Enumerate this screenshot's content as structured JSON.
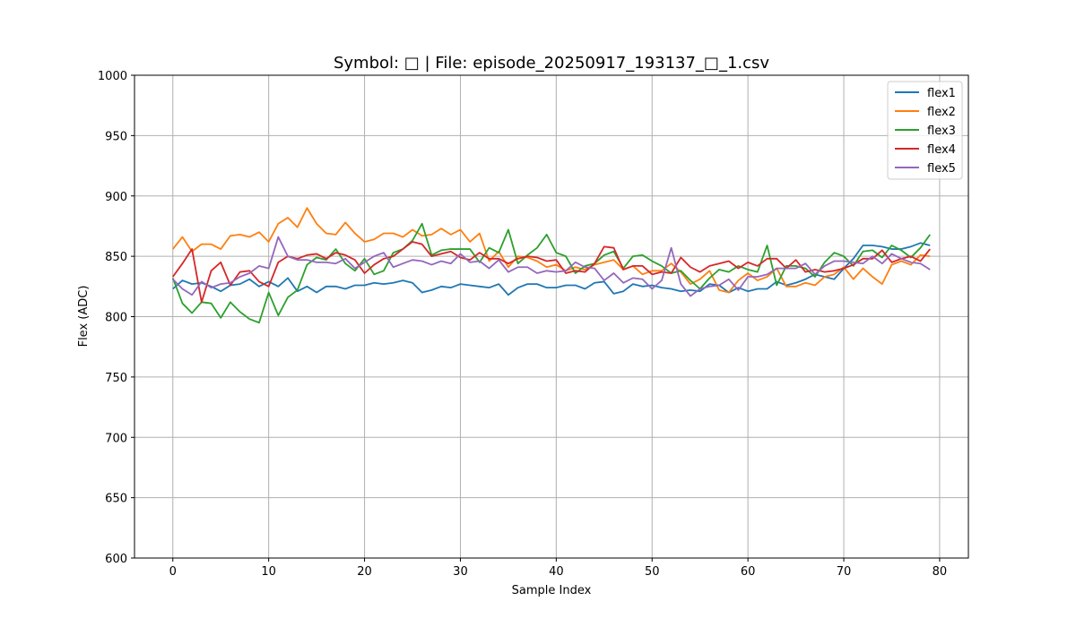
{
  "chart_data": {
    "type": "line",
    "title": "Symbol: □ | File: episode_20250917_193137_□_1.csv",
    "xlabel": "Sample Index",
    "ylabel": "Flex (ADC)",
    "xlim": [
      -4,
      83
    ],
    "ylim": [
      600,
      1000
    ],
    "xticks": [
      0,
      10,
      20,
      30,
      40,
      50,
      60,
      70,
      80
    ],
    "yticks": [
      600,
      650,
      700,
      750,
      800,
      850,
      900,
      950,
      1000
    ],
    "grid": true,
    "legend_position": "top-right",
    "x": [
      0,
      1,
      2,
      3,
      4,
      5,
      6,
      7,
      8,
      9,
      10,
      11,
      12,
      13,
      14,
      15,
      16,
      17,
      18,
      19,
      20,
      21,
      22,
      23,
      24,
      25,
      26,
      27,
      28,
      29,
      30,
      31,
      32,
      33,
      34,
      35,
      36,
      37,
      38,
      39,
      40,
      41,
      42,
      43,
      44,
      45,
      46,
      47,
      48,
      49,
      50,
      51,
      52,
      53,
      54,
      55,
      56,
      57,
      58,
      59,
      60,
      61,
      62,
      63,
      64,
      65,
      66,
      67,
      68,
      69,
      70,
      71,
      72,
      73,
      74,
      75,
      76,
      77,
      78,
      79
    ],
    "series": [
      {
        "name": "flex1",
        "color": "#1f77b4",
        "values": [
          823,
          830,
          827,
          828,
          825,
          821,
          826,
          827,
          831,
          825,
          829,
          825,
          832,
          821,
          825,
          820,
          825,
          825,
          823,
          826,
          826,
          828,
          827,
          828,
          830,
          828,
          820,
          822,
          825,
          824,
          827,
          826,
          825,
          824,
          827,
          818,
          824,
          827,
          827,
          824,
          824,
          826,
          826,
          823,
          828,
          829,
          819,
          821,
          827,
          825,
          826,
          824,
          823,
          821,
          822,
          821,
          827,
          826,
          820,
          824,
          821,
          823,
          823,
          829,
          826,
          828,
          831,
          835,
          833,
          831,
          840,
          848,
          859,
          859,
          858,
          856,
          856,
          858,
          861,
          859
        ]
      },
      {
        "name": "flex2",
        "color": "#ff7f0e",
        "values": [
          856,
          866,
          854,
          860,
          860,
          856,
          867,
          868,
          866,
          870,
          862,
          877,
          882,
          874,
          890,
          877,
          869,
          868,
          878,
          869,
          862,
          864,
          869,
          869,
          866,
          872,
          867,
          868,
          873,
          868,
          872,
          862,
          869,
          846,
          854,
          841,
          850,
          849,
          846,
          841,
          843,
          838,
          841,
          839,
          843,
          845,
          847,
          839,
          842,
          835,
          838,
          838,
          844,
          837,
          827,
          831,
          838,
          822,
          820,
          830,
          836,
          830,
          833,
          840,
          825,
          825,
          828,
          826,
          833,
          835,
          841,
          831,
          840,
          833,
          827,
          843,
          846,
          843,
          851,
          850
        ]
      },
      {
        "name": "flex3",
        "color": "#2ca02c",
        "values": [
          832,
          811,
          803,
          812,
          811,
          799,
          812,
          804,
          798,
          795,
          820,
          801,
          816,
          822,
          843,
          849,
          847,
          856,
          844,
          838,
          848,
          835,
          838,
          853,
          856,
          863,
          877,
          851,
          855,
          856,
          856,
          856,
          845,
          857,
          853,
          872,
          844,
          851,
          857,
          868,
          853,
          850,
          836,
          842,
          844,
          851,
          854,
          840,
          850,
          851,
          846,
          842,
          836,
          838,
          830,
          823,
          832,
          839,
          837,
          842,
          839,
          837,
          859,
          826,
          842,
          842,
          840,
          833,
          845,
          853,
          850,
          842,
          854,
          855,
          849,
          859,
          855,
          849,
          857,
          868
        ]
      },
      {
        "name": "flex4",
        "color": "#d62728",
        "values": [
          833,
          844,
          856,
          812,
          838,
          845,
          826,
          837,
          838,
          829,
          825,
          845,
          850,
          848,
          851,
          852,
          848,
          853,
          851,
          847,
          836,
          843,
          848,
          850,
          856,
          862,
          860,
          850,
          852,
          854,
          849,
          847,
          853,
          848,
          848,
          844,
          848,
          850,
          849,
          846,
          847,
          836,
          838,
          837,
          844,
          858,
          857,
          839,
          842,
          842,
          835,
          837,
          836,
          849,
          841,
          837,
          842,
          844,
          846,
          840,
          845,
          842,
          848,
          848,
          840,
          847,
          837,
          839,
          837,
          838,
          840,
          843,
          848,
          848,
          855,
          845,
          848,
          850,
          846,
          856
        ]
      },
      {
        "name": "flex5",
        "color": "#9467bd",
        "values": [
          831,
          823,
          818,
          829,
          824,
          827,
          828,
          833,
          836,
          842,
          840,
          866,
          850,
          847,
          847,
          845,
          845,
          844,
          848,
          840,
          845,
          850,
          853,
          841,
          844,
          847,
          846,
          843,
          846,
          844,
          852,
          845,
          846,
          840,
          847,
          837,
          841,
          841,
          836,
          838,
          837,
          838,
          845,
          841,
          840,
          830,
          836,
          828,
          832,
          831,
          823,
          830,
          857,
          827,
          817,
          823,
          825,
          826,
          831,
          822,
          833,
          833,
          835,
          840,
          840,
          840,
          844,
          835,
          842,
          846,
          846,
          845,
          844,
          850,
          844,
          852,
          848,
          845,
          844,
          839
        ]
      }
    ]
  }
}
